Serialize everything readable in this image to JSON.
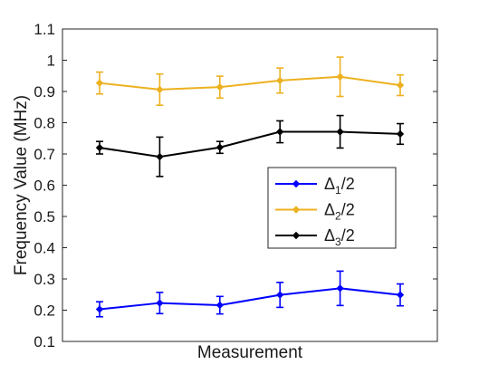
{
  "chart_data": {
    "type": "line",
    "xlabel": "Measurement",
    "ylabel": "Frequency Value (MHz)",
    "ylim": [
      0.1,
      1.1
    ],
    "yticks": [
      0.1,
      0.2,
      0.3,
      0.4,
      0.5,
      0.6,
      0.7,
      0.8,
      0.9,
      1,
      1.1
    ],
    "ytick_labels": [
      "0.1",
      "0.2",
      "0.3",
      "0.4",
      "0.5",
      "0.6",
      "0.7",
      "0.8",
      "0.9",
      "1",
      "1.1"
    ],
    "x": [
      1,
      2,
      3,
      4,
      5,
      6
    ],
    "xlim": [
      0,
      7
    ],
    "grid": false,
    "legend_position": "middle-right",
    "series": [
      {
        "name": "Δ1/2",
        "legend": {
          "symbol": "Δ",
          "sub": "1",
          "suffix": "/2"
        },
        "color": "#0000ff",
        "values": [
          0.203,
          0.223,
          0.216,
          0.249,
          0.27,
          0.249
        ],
        "errors": [
          0.024,
          0.034,
          0.028,
          0.04,
          0.055,
          0.035
        ]
      },
      {
        "name": "Δ2/2",
        "legend": {
          "symbol": "Δ",
          "sub": "2",
          "suffix": "/2"
        },
        "color": "#edb120",
        "values": [
          0.927,
          0.906,
          0.914,
          0.935,
          0.947,
          0.92
        ],
        "errors": [
          0.035,
          0.05,
          0.035,
          0.04,
          0.063,
          0.033
        ]
      },
      {
        "name": "Δ3/2",
        "legend": {
          "symbol": "Δ",
          "sub": "3",
          "suffix": "/2"
        },
        "color": "#000000",
        "values": [
          0.72,
          0.691,
          0.721,
          0.771,
          0.771,
          0.764
        ],
        "errors": [
          0.02,
          0.063,
          0.019,
          0.035,
          0.052,
          0.033
        ]
      }
    ]
  }
}
